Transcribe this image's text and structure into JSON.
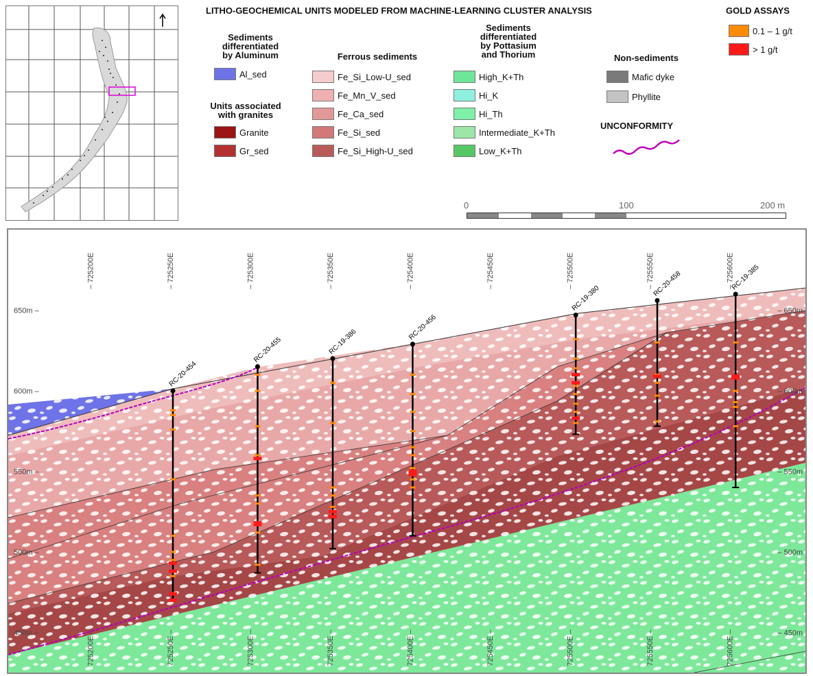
{
  "title": "LITHO-GEOCHEMICAL UNITS MODELED FROM MACHINE-LEARNING CLUSTER ANALYSIS",
  "legend_groups": [
    {
      "heading_lines": [
        "Sediments",
        "differentiated",
        "by Aluminum"
      ],
      "items": [
        {
          "label": "Al_sed",
          "color": "#6f73e8"
        }
      ]
    },
    {
      "heading_lines": [
        "Units associated",
        "with granites"
      ],
      "items": [
        {
          "label": "Granite",
          "color": "#9b1313"
        },
        {
          "label": "Gr_sed",
          "color": "#b53030"
        }
      ]
    },
    {
      "heading_lines": [
        "Ferrous sediments"
      ],
      "items": [
        {
          "label": "Fe_Si_Low-U_sed",
          "color": "#f5cccc"
        },
        {
          "label": "Fe_Mn_V_sed",
          "color": "#eeb0b0"
        },
        {
          "label": "Fe_Ca_sed",
          "color": "#e39898"
        },
        {
          "label": "Fe_Si_sed",
          "color": "#d27878"
        },
        {
          "label": "Fe_Si_High-U_sed",
          "color": "#b95a5a"
        }
      ]
    },
    {
      "heading_lines": [
        "Sediments",
        "differentiated",
        "by Pottasium",
        "and Thorium"
      ],
      "items": [
        {
          "label": "High_K+Th",
          "color": "#6ee69a"
        },
        {
          "label": "Hi_K",
          "color": "#8ff0df"
        },
        {
          "label": "Hi_Th",
          "color": "#7ef0a8"
        },
        {
          "label": "Intermediate_K+Th",
          "color": "#9be6a8"
        },
        {
          "label": "Low_K+Th",
          "color": "#55c865"
        }
      ]
    },
    {
      "heading_lines": [
        "Non-sediments"
      ],
      "items": [
        {
          "label": "Mafic dyke",
          "color": "#7a7a7a"
        },
        {
          "label": "Phyllite",
          "color": "#c4c4c4"
        }
      ]
    }
  ],
  "unconformity_label": "UNCONFORMITY",
  "gold_assays": {
    "title": "GOLD ASSAYS",
    "items": [
      {
        "label": "0.1 – 1 g/t",
        "color": "#ff8c00"
      },
      {
        "label": "> 1 g/t",
        "color": "#ff1a1a"
      }
    ]
  },
  "scale_bar": {
    "labels": [
      "0",
      "100",
      "200 m"
    ]
  },
  "section": {
    "easting_labels": [
      "725200E",
      "725250E",
      "725300E",
      "725350E",
      "725400E",
      "725450E",
      "725500E",
      "725550E",
      "725600E"
    ],
    "elevation_labels": [
      "650m",
      "600m",
      "550m",
      "500m",
      "450m"
    ],
    "drillholes": [
      {
        "name": "RC-20-454",
        "easting": 725250,
        "collar": 600,
        "bottom": 470,
        "assays_med": [
          588,
          585,
          576,
          545,
          510,
          500,
          495,
          485
        ],
        "assays_high": [
          493,
          488,
          474,
          470
        ]
      },
      {
        "name": "RC-20-455",
        "easting": 725303,
        "collar": 615,
        "bottom": 487,
        "assays_med": [
          610,
          600,
          578,
          560,
          535,
          530,
          512,
          492
        ],
        "assays_high": [
          558,
          518,
          517
        ]
      },
      {
        "name": "RC-19-386",
        "easting": 725350,
        "collar": 620,
        "bottom": 502,
        "assays_med": [
          605,
          580,
          540,
          535,
          528,
          522
        ],
        "assays_high": [
          525,
          522
        ]
      },
      {
        "name": "RC-20-456",
        "easting": 725400,
        "collar": 629,
        "bottom": 510,
        "assays_med": [
          610,
          598,
          587,
          575,
          565,
          560,
          552,
          545,
          540
        ],
        "assays_high": [
          550,
          548
        ]
      },
      {
        "name": "RC-19-380",
        "easting": 725502,
        "collar": 647,
        "bottom": 573,
        "assays_med": [
          632,
          620,
          614,
          610,
          603,
          598,
          592,
          587,
          580
        ],
        "assays_high": [
          610,
          605,
          583
        ]
      },
      {
        "name": "RC-20-458",
        "easting": 725553,
        "collar": 656,
        "bottom": 578,
        "assays_med": [
          630,
          610,
          605,
          597,
          581
        ],
        "assays_high": [
          609
        ]
      },
      {
        "name": "RC-19-385",
        "easting": 725602,
        "collar": 660,
        "bottom": 540,
        "assays_med": [
          630,
          600,
          593,
          590,
          578
        ],
        "assays_high": [
          609,
          608
        ]
      }
    ]
  }
}
